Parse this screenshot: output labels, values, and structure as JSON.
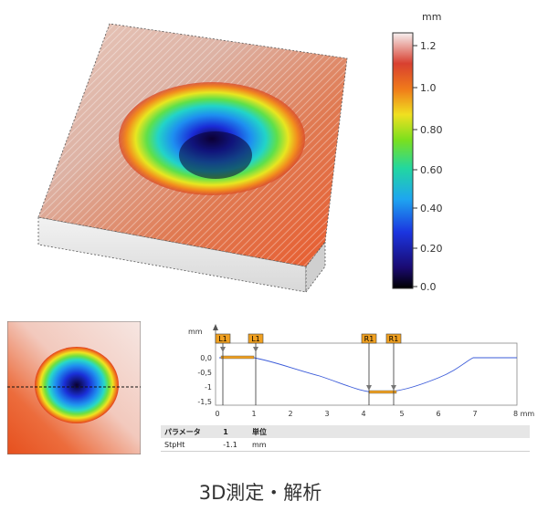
{
  "scale": {
    "unit": "mm",
    "ticks": [
      "1.2",
      "1.0",
      "0.80",
      "0.60",
      "0.40",
      "0.20",
      "0.0"
    ]
  },
  "profile": {
    "y_unit": "mm",
    "x_unit": "8 mm",
    "y_ticks": [
      "0,0",
      "-0,5",
      "-1",
      "-1,5"
    ],
    "x_ticks": [
      "0",
      "1",
      "2",
      "3",
      "4",
      "5",
      "6",
      "7"
    ],
    "markers": [
      "L1",
      "L1",
      "R1",
      "R1"
    ],
    "line_color": "#3b5bd9",
    "marker_color": "#f0a020"
  },
  "table": {
    "header": [
      "パラメータ",
      "1",
      "単位"
    ],
    "rows": [
      {
        "param": "StpHt",
        "value": "-1.1",
        "unit": "mm"
      }
    ]
  },
  "caption": "3D測定・解析"
}
